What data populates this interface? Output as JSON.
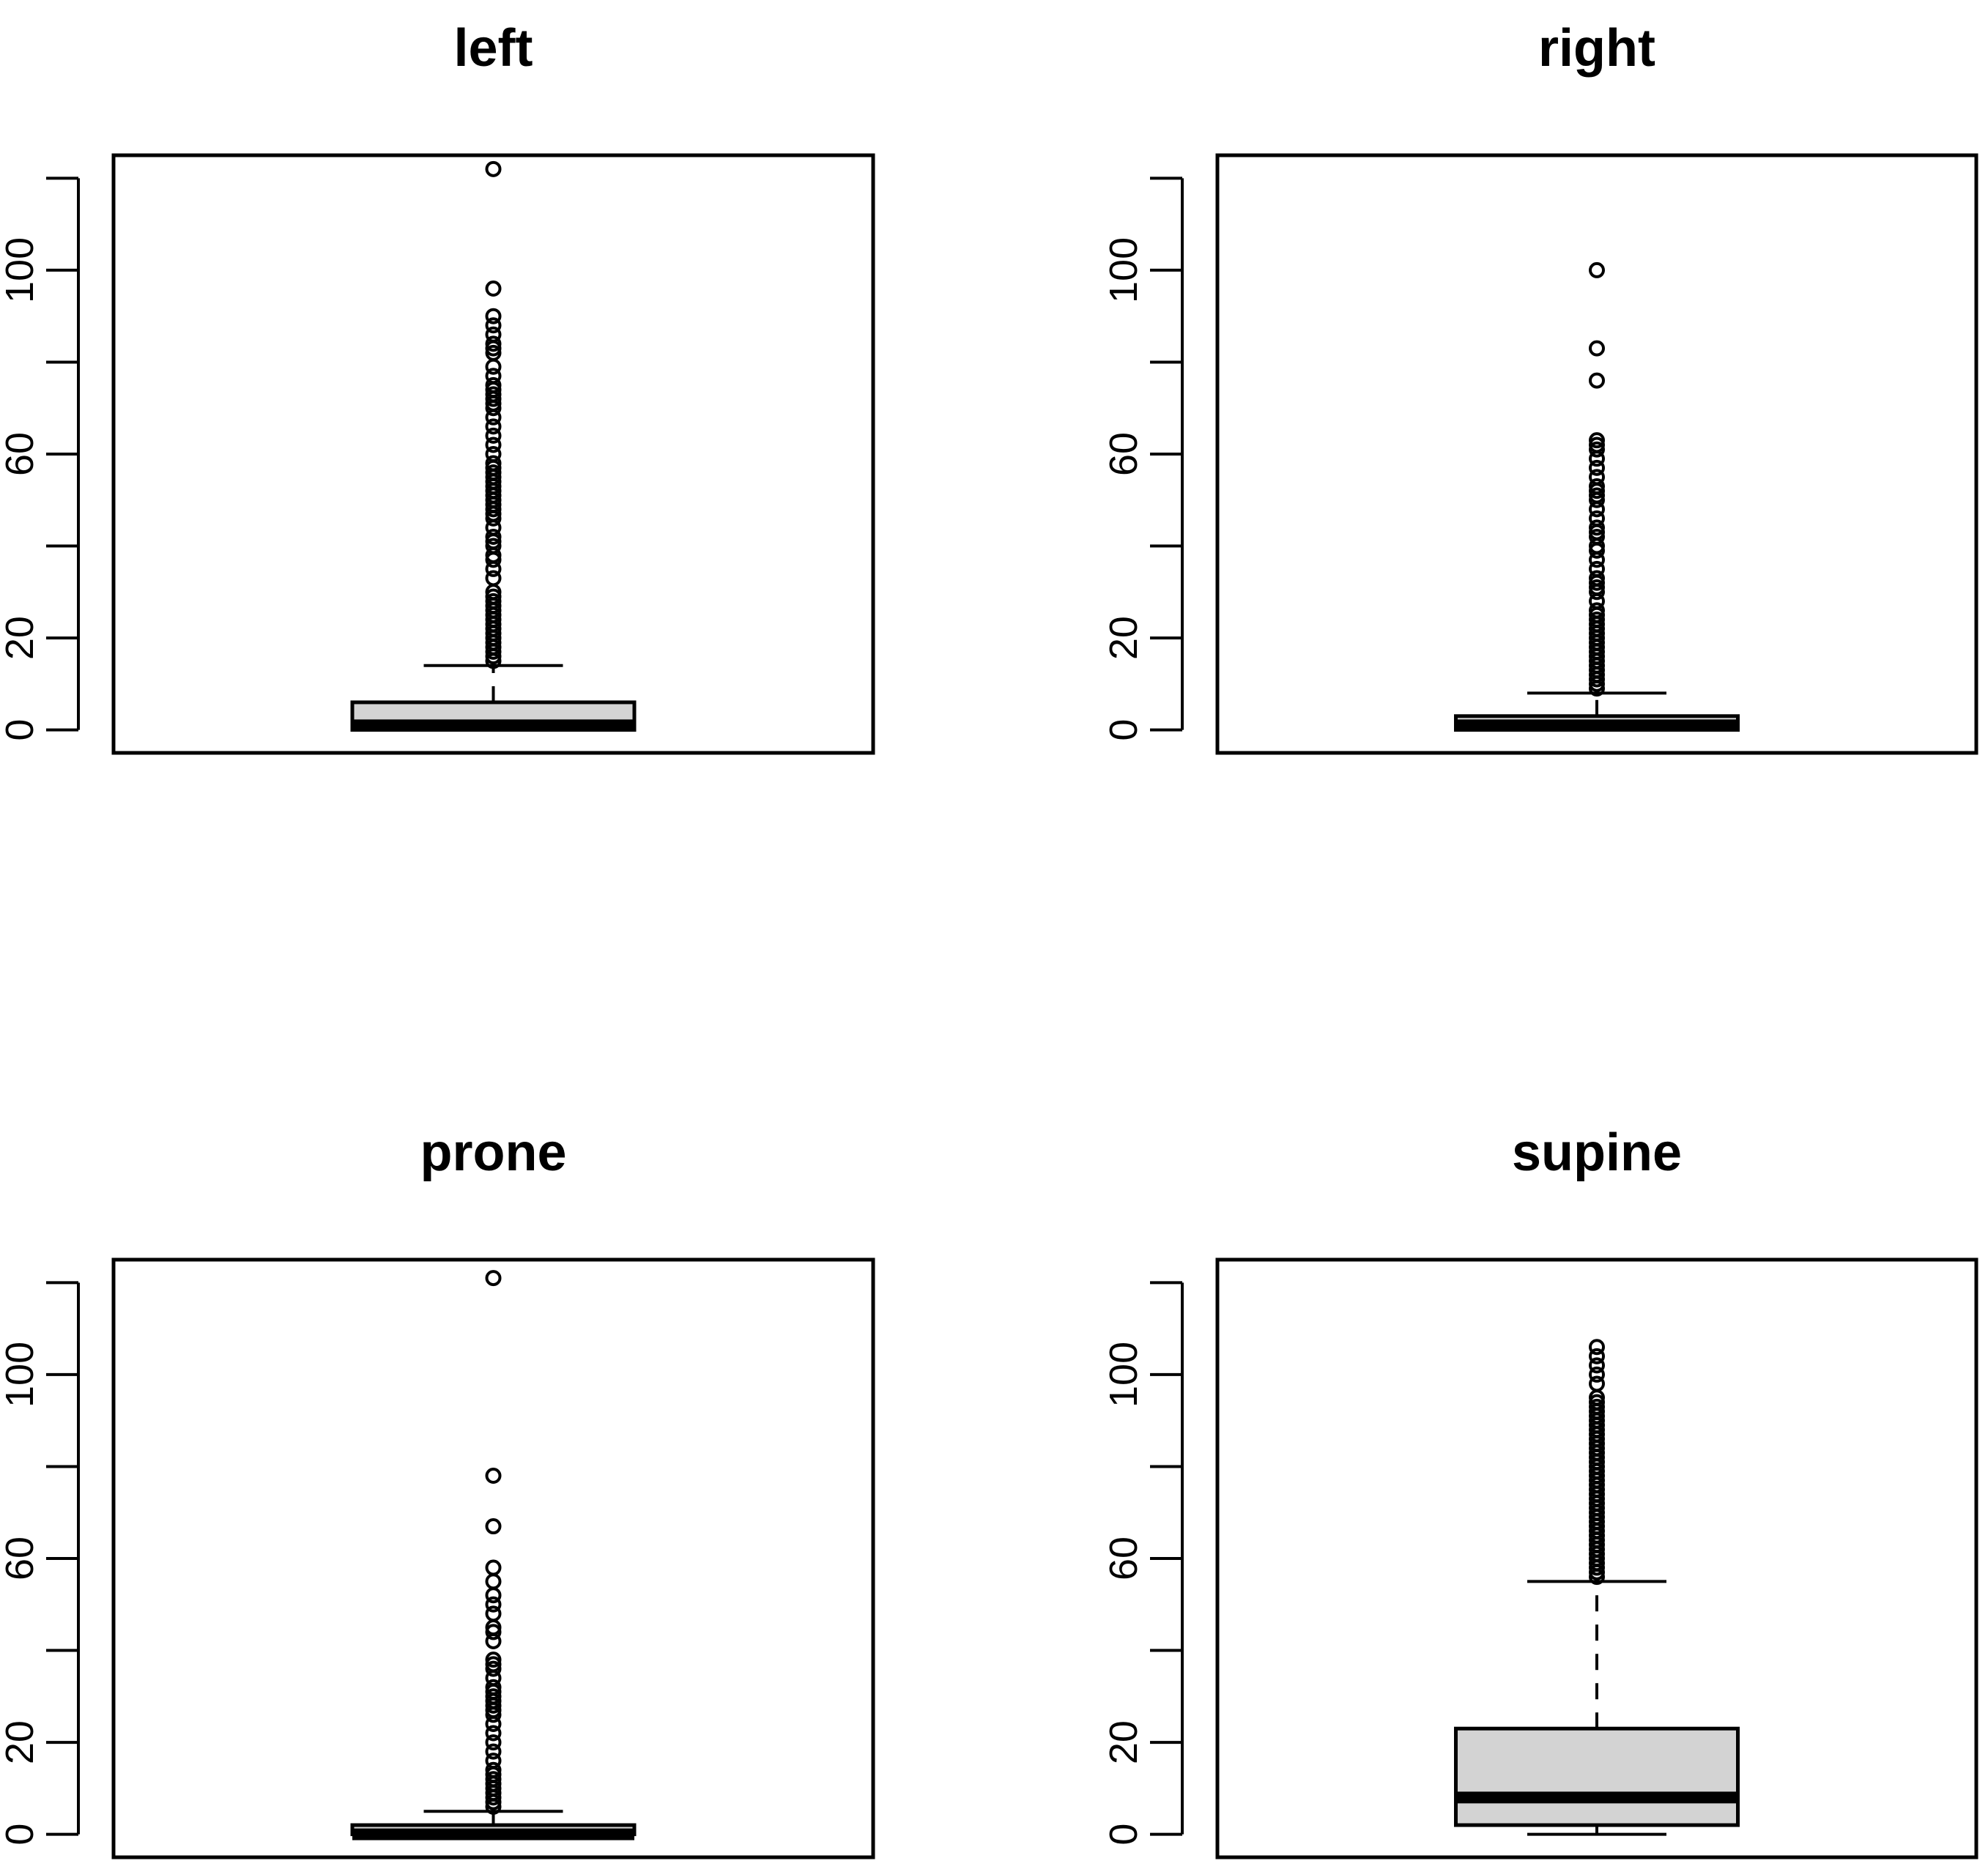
{
  "chart_data": [
    {
      "type": "boxplot",
      "title": "left",
      "ylim": [
        -5,
        125
      ],
      "yticks": [
        0,
        20,
        40,
        60,
        80,
        100,
        120
      ],
      "ytick_labels": [
        "0",
        "20",
        "",
        "60",
        "",
        "100",
        ""
      ],
      "box": {
        "whisker_low": 0,
        "q1": 0,
        "median": 1,
        "q3": 6,
        "whisker_high": 14
      },
      "whisker_end_marker": 10,
      "outliers": [
        15,
        16,
        17,
        18,
        19,
        20,
        21,
        22,
        23,
        24,
        25,
        26,
        27,
        28,
        29,
        30,
        33,
        35,
        37,
        38,
        40,
        41,
        42,
        44,
        46,
        47,
        48,
        49,
        50,
        51,
        52,
        53,
        54,
        55,
        56,
        57,
        58,
        60,
        62,
        64,
        66,
        68,
        70,
        71,
        72,
        73,
        74,
        75,
        77,
        79,
        82,
        83,
        84,
        86,
        88,
        90,
        96,
        122
      ]
    },
    {
      "type": "boxplot",
      "title": "right",
      "ylim": [
        -5,
        125
      ],
      "yticks": [
        0,
        20,
        40,
        60,
        80,
        100,
        120
      ],
      "ytick_labels": [
        "0",
        "20",
        "",
        "60",
        "",
        "100",
        ""
      ],
      "box": {
        "whisker_low": 0,
        "q1": 0,
        "median": 1,
        "q3": 3,
        "whisker_high": 8
      },
      "outliers": [
        9,
        10,
        11,
        12,
        13,
        14,
        15,
        16,
        17,
        18,
        19,
        20,
        21,
        22,
        23,
        24,
        25,
        26,
        28,
        30,
        31,
        32,
        33,
        35,
        37,
        39,
        40,
        42,
        43,
        44,
        46,
        48,
        50,
        51,
        52,
        53,
        55,
        57,
        59,
        61,
        62,
        63,
        76,
        83,
        100
      ]
    },
    {
      "type": "boxplot",
      "title": "prone",
      "ylim": [
        -5,
        125
      ],
      "yticks": [
        0,
        20,
        40,
        60,
        80,
        100,
        120
      ],
      "ytick_labels": [
        "0",
        "20",
        "",
        "60",
        "",
        "100",
        ""
      ],
      "box": {
        "whisker_low": 0,
        "q1": 0,
        "median": 0,
        "q3": 2,
        "whisker_high": 5
      },
      "outliers": [
        6,
        7,
        8,
        9,
        10,
        11,
        12,
        13,
        14,
        16,
        18,
        20,
        22,
        24,
        26,
        27,
        28,
        29,
        30,
        31,
        32,
        34,
        36,
        37,
        38,
        42,
        44,
        45,
        48,
        50,
        52,
        55,
        58,
        67,
        78,
        121
      ]
    },
    {
      "type": "boxplot",
      "title": "supine",
      "ylim": [
        -5,
        125
      ],
      "yticks": [
        0,
        20,
        40,
        60,
        80,
        100,
        120
      ],
      "ytick_labels": [
        "0",
        "20",
        "",
        "60",
        "",
        "100",
        ""
      ],
      "box": {
        "whisker_low": 0,
        "q1": 2,
        "median": 8,
        "q3": 23,
        "whisker_high": 55
      },
      "outliers": [
        56,
        57,
        58,
        59,
        60,
        61,
        62,
        63,
        64,
        65,
        66,
        67,
        68,
        69,
        70,
        71,
        72,
        73,
        74,
        75,
        76,
        77,
        78,
        79,
        80,
        81,
        82,
        83,
        84,
        85,
        86,
        87,
        88,
        89,
        90,
        91,
        92,
        93,
        94,
        95,
        98,
        100,
        102,
        104,
        106
      ]
    }
  ]
}
